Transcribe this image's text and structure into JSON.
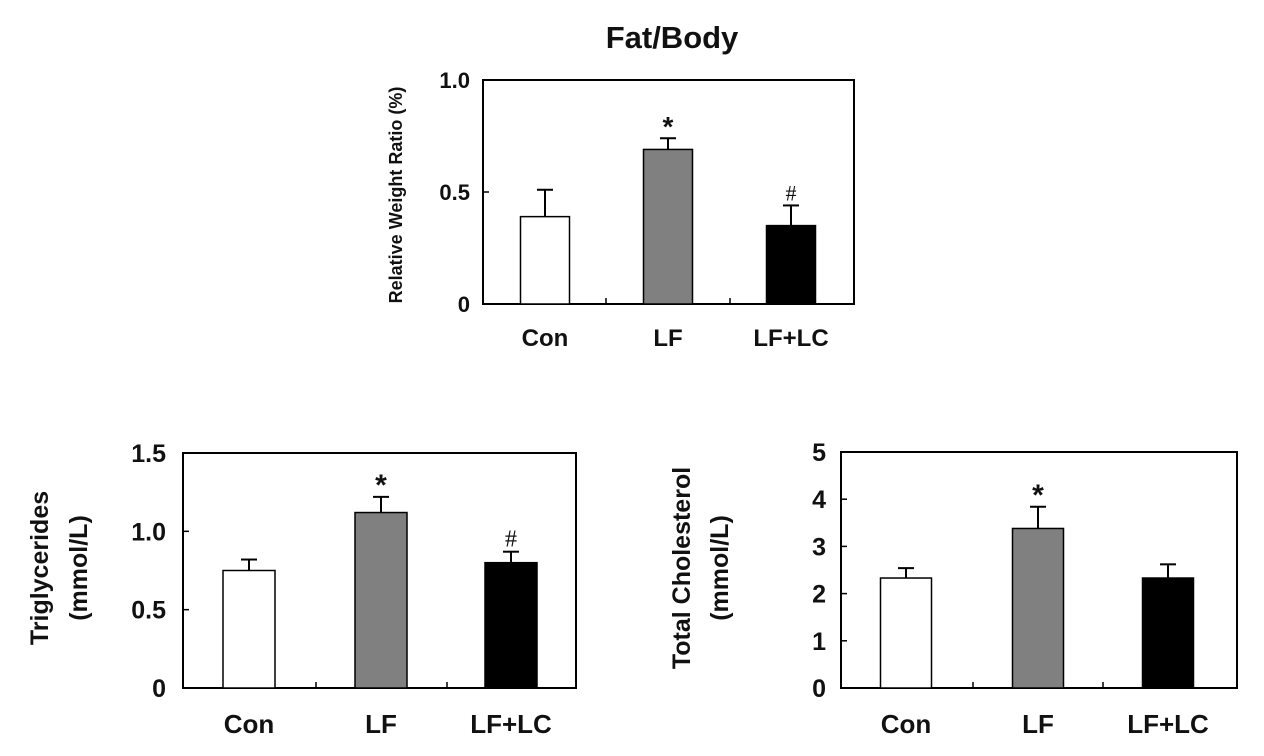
{
  "chart_data": [
    {
      "type": "bar",
      "title": "Fat/Body",
      "ylabel": "Relative Weight Ratio (%)",
      "xlabel": "",
      "categories": [
        "Con",
        "LF",
        "LF+LC"
      ],
      "values": [
        0.39,
        0.69,
        0.35
      ],
      "errors": [
        0.12,
        0.05,
        0.09
      ],
      "annotations": [
        "",
        "*",
        "#"
      ],
      "ylim": [
        0,
        1.0
      ],
      "yticks": [
        "0",
        "0.5",
        "1.0"
      ],
      "ytick_values": [
        0,
        0.5,
        1.0
      ],
      "colors": [
        "#ffffff",
        "#808080",
        "#000000"
      ],
      "grid": false
    },
    {
      "type": "bar",
      "title": "",
      "ylabel_lines": [
        "Triglycerides",
        "(mmol/L)"
      ],
      "xlabel": "",
      "categories": [
        "Con",
        "LF",
        "LF+LC"
      ],
      "values": [
        0.75,
        1.12,
        0.8
      ],
      "errors": [
        0.07,
        0.1,
        0.07
      ],
      "annotations": [
        "",
        "*",
        "#"
      ],
      "ylim": [
        0,
        1.5
      ],
      "yticks": [
        "0",
        "0.5",
        "1.0",
        "1.5"
      ],
      "ytick_values": [
        0,
        0.5,
        1.0,
        1.5
      ],
      "colors": [
        "#ffffff",
        "#808080",
        "#000000"
      ],
      "grid": false
    },
    {
      "type": "bar",
      "title": "",
      "ylabel_lines": [
        "Total Cholesterol",
        "(mmol/L)"
      ],
      "xlabel": "",
      "categories": [
        "Con",
        "LF",
        "LF+LC"
      ],
      "values": [
        2.33,
        3.38,
        2.33
      ],
      "errors": [
        0.21,
        0.46,
        0.29
      ],
      "annotations": [
        "",
        "*",
        ""
      ],
      "ylim": [
        0,
        5
      ],
      "yticks": [
        "0",
        "1",
        "2",
        "3",
        "4",
        "5"
      ],
      "ytick_values": [
        0,
        1,
        2,
        3,
        4,
        5
      ],
      "colors": [
        "#ffffff",
        "#808080",
        "#000000"
      ],
      "grid": false
    }
  ]
}
